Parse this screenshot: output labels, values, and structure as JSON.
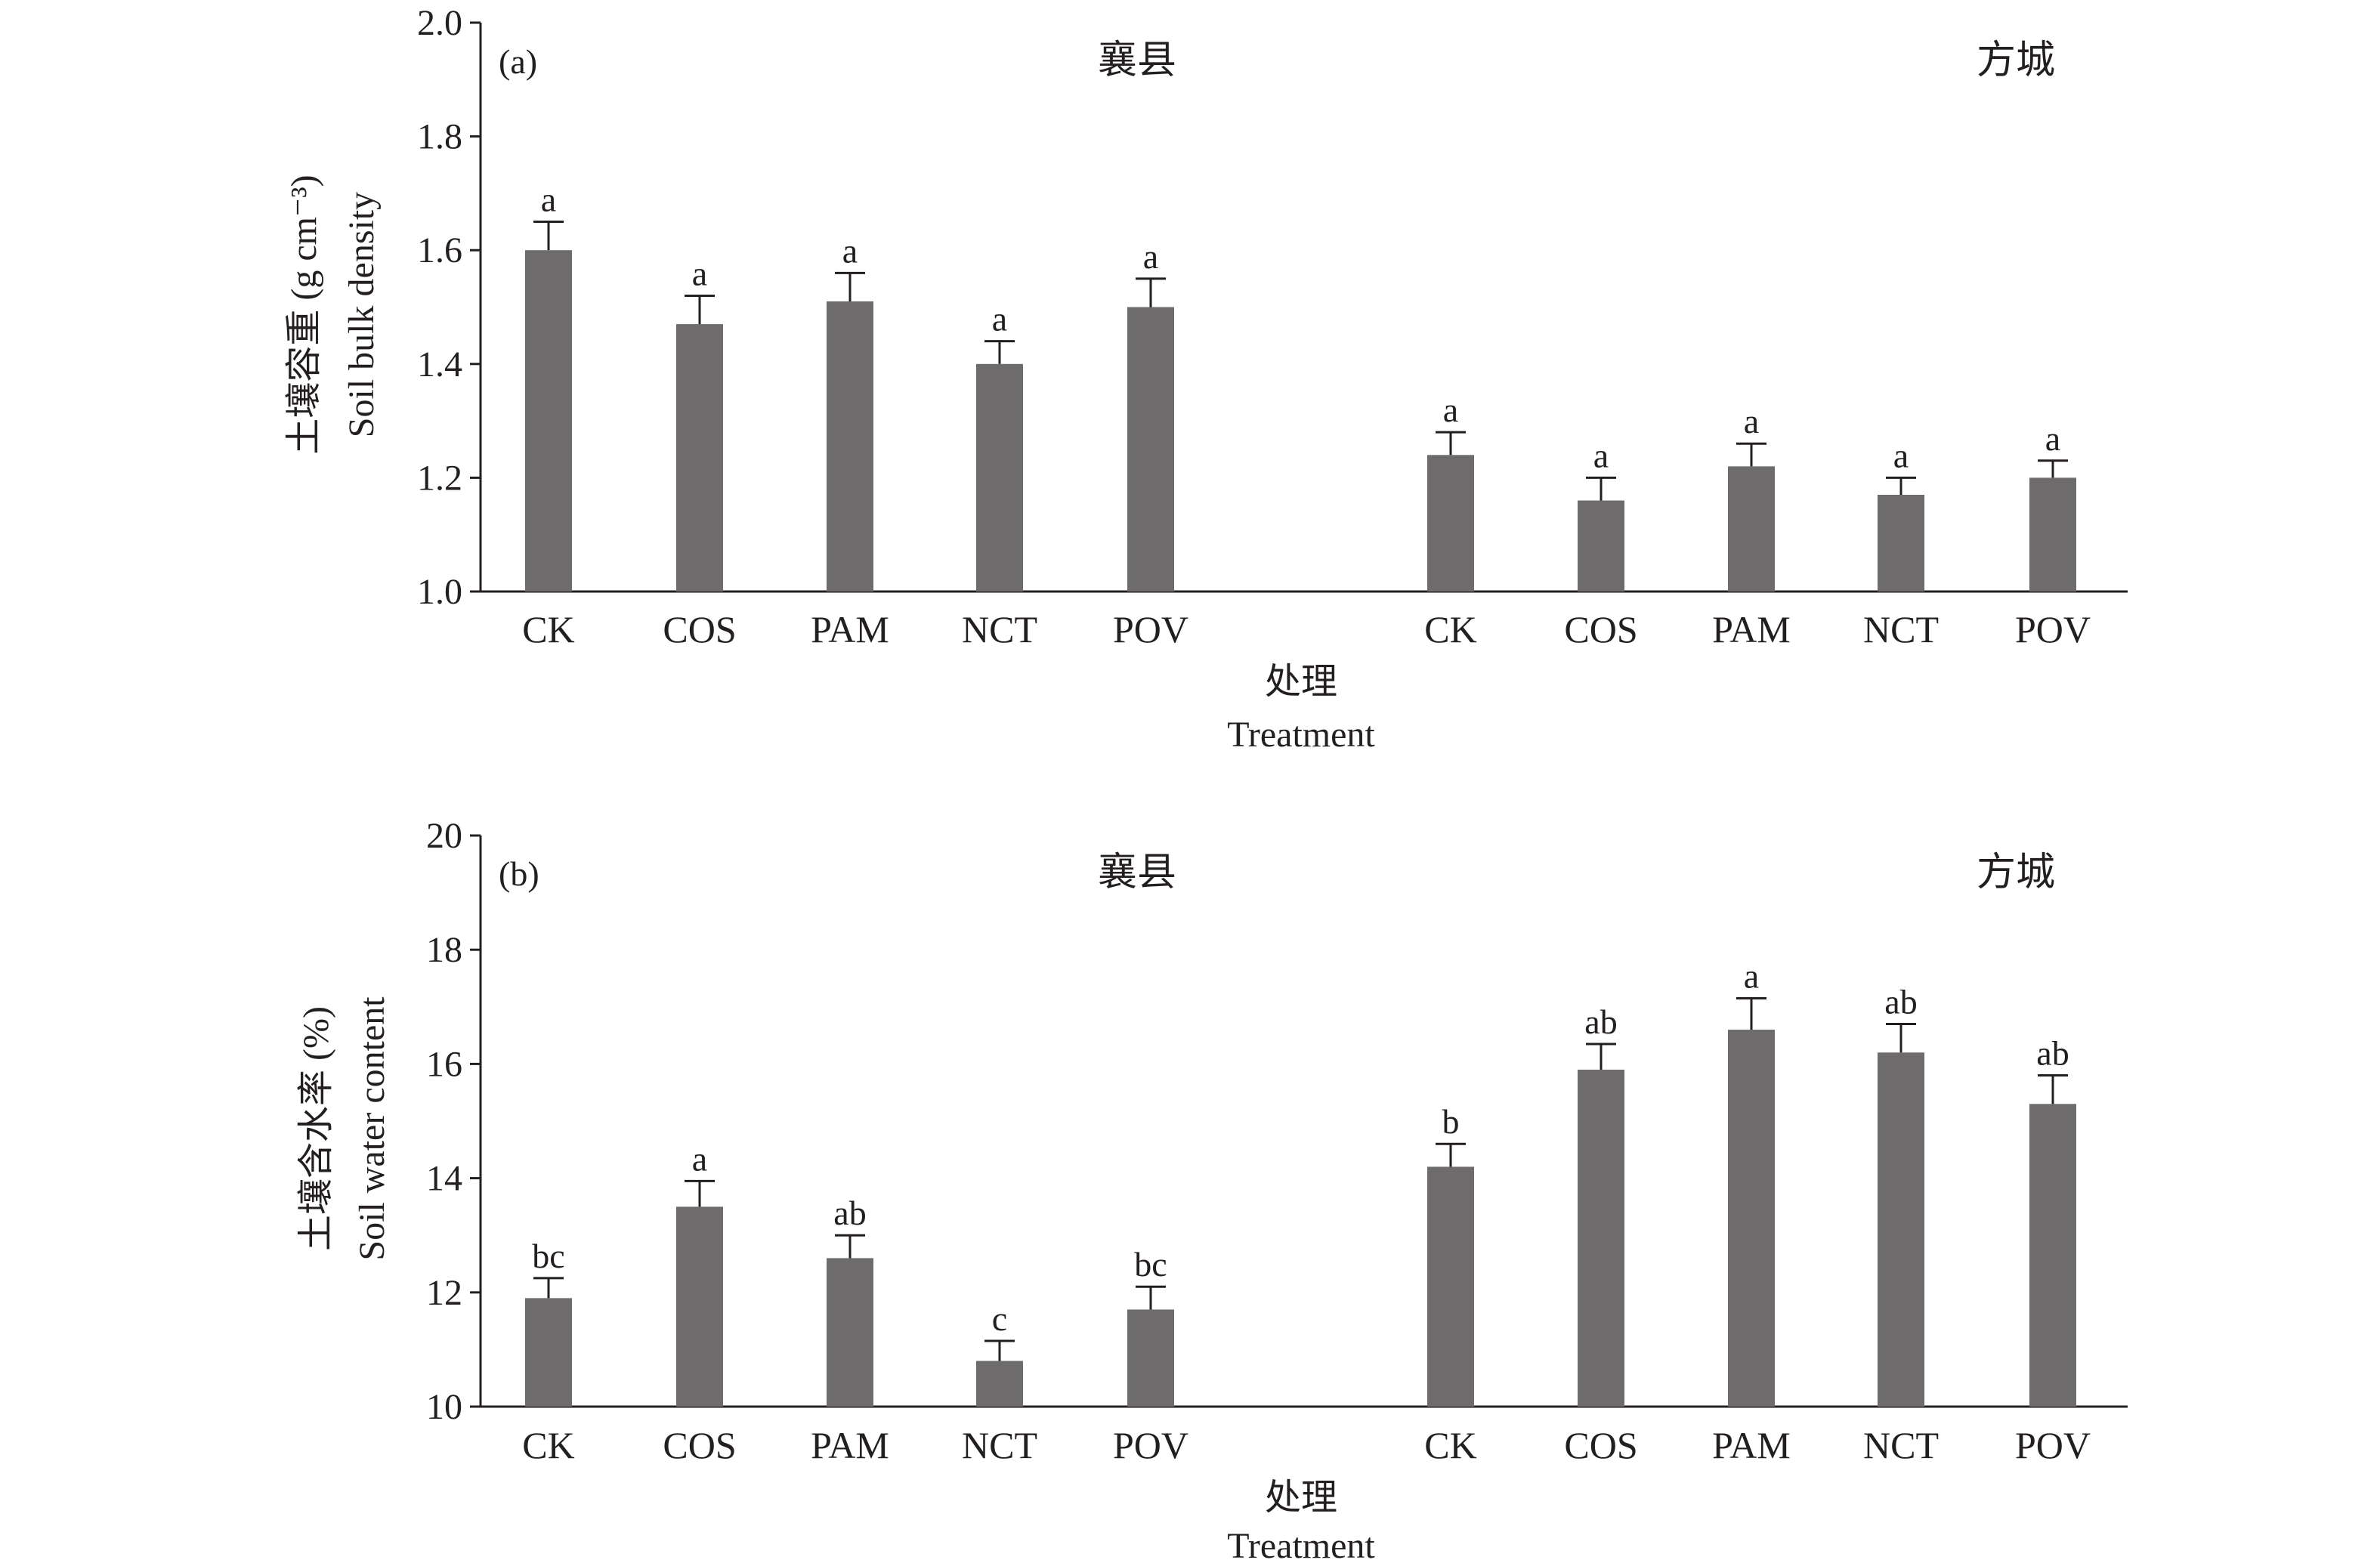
{
  "chart_data": [
    {
      "type": "bar",
      "panel_label": "(a)",
      "ylabel_zh": "土壤容重 (g cm⁻³)",
      "ylabel_en": "Soil bulk density",
      "xlabel_zh": "处理",
      "xlabel_en": "Treatment",
      "ylim": [
        1.0,
        2.0
      ],
      "yticks": [
        "1.0",
        "1.2",
        "1.4",
        "1.6",
        "1.8",
        "2.0"
      ],
      "groups": [
        {
          "site": "襄县",
          "categories": [
            "CK",
            "COS",
            "PAM",
            "NCT",
            "POV"
          ],
          "values": [
            1.6,
            1.47,
            1.51,
            1.4,
            1.5
          ],
          "errors": [
            0.05,
            0.05,
            0.05,
            0.04,
            0.05
          ],
          "significance": [
            "a",
            "a",
            "a",
            "a",
            "a"
          ]
        },
        {
          "site": "方城",
          "categories": [
            "CK",
            "COS",
            "PAM",
            "NCT",
            "POV"
          ],
          "values": [
            1.24,
            1.16,
            1.22,
            1.17,
            1.2
          ],
          "errors": [
            0.04,
            0.04,
            0.04,
            0.03,
            0.03
          ],
          "significance": [
            "a",
            "a",
            "a",
            "a",
            "a"
          ]
        }
      ]
    },
    {
      "type": "bar",
      "panel_label": "(b)",
      "ylabel_zh": "土壤含水率 (%)",
      "ylabel_en": "Soil water content",
      "xlabel_zh": "处理",
      "xlabel_en": "Treatment",
      "ylim": [
        10,
        20
      ],
      "yticks": [
        "10",
        "12",
        "14",
        "16",
        "18",
        "20"
      ],
      "groups": [
        {
          "site": "襄县",
          "categories": [
            "CK",
            "COS",
            "PAM",
            "NCT",
            "POV"
          ],
          "values": [
            11.9,
            13.5,
            12.6,
            10.8,
            11.7
          ],
          "errors": [
            0.35,
            0.45,
            0.4,
            0.35,
            0.4
          ],
          "significance": [
            "bc",
            "a",
            "ab",
            "c",
            "bc"
          ]
        },
        {
          "site": "方城",
          "categories": [
            "CK",
            "COS",
            "PAM",
            "NCT",
            "POV"
          ],
          "values": [
            14.2,
            15.9,
            16.6,
            16.2,
            15.3
          ],
          "errors": [
            0.4,
            0.45,
            0.55,
            0.5,
            0.5
          ],
          "significance": [
            "b",
            "ab",
            "a",
            "ab",
            "ab"
          ]
        }
      ]
    }
  ],
  "colors": {
    "bar": "#6d6b6b",
    "axis": "#231f20"
  }
}
